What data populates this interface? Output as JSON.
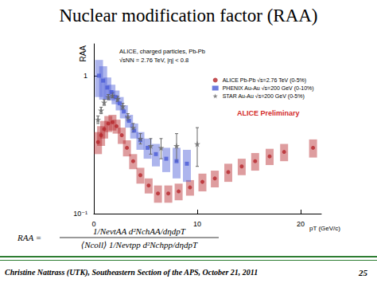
{
  "chart_data": {
    "type": "scatter",
    "title": "Nuclear modification factor (RAA)",
    "x_label": "pT (GeV/c)",
    "y_label": "RAA",
    "xlim": [
      0,
      22
    ],
    "xticks": [
      0,
      10,
      20
    ],
    "ylim": [
      0.1,
      1.7
    ],
    "yticks": [
      {
        "value": 0.1,
        "label": "10⁻¹"
      },
      1
    ],
    "log": "y",
    "grid": false,
    "legend": "upper right",
    "annotations": [
      {
        "text": "ALICE, charged particles, Pb-Pb"
      },
      {
        "text": "√sNN = 2.76 TeV, |η| < 0.8"
      },
      {
        "text": "ALICE Preliminary",
        "color": "#d42a2a"
      }
    ],
    "series": [
      {
        "name": "ALICE Pb-Pb √s=2.76 TeV (0-5%)",
        "color": "#b5262b",
        "marker": "circle",
        "x": [
          0.4,
          0.7,
          1.0,
          1.4,
          1.8,
          2.2,
          2.7,
          3.2,
          3.8,
          4.5,
          5.3,
          6.2,
          7.2,
          8.2,
          9.3,
          10.5,
          11.7,
          13.0,
          14.3,
          15.6,
          17.0,
          18.4,
          21.2
        ],
        "values": [
          0.33,
          0.37,
          0.41,
          0.45,
          0.46,
          0.43,
          0.37,
          0.3,
          0.24,
          0.19,
          0.16,
          0.14,
          0.14,
          0.145,
          0.155,
          0.17,
          0.18,
          0.2,
          0.22,
          0.24,
          0.26,
          0.28,
          0.3
        ],
        "systematic_errors": [
          0.06,
          0.06,
          0.06,
          0.06,
          0.06,
          0.05,
          0.05,
          0.04,
          0.03,
          0.025,
          0.02,
          0.02,
          0.02,
          0.02,
          0.02,
          0.025,
          0.025,
          0.03,
          0.03,
          0.035,
          0.035,
          0.04,
          0.045
        ]
      },
      {
        "name": "PHENIX Au-Au √s=200 GeV (0-10%)",
        "color": "#4a5bd6",
        "marker": "square",
        "x": [
          0.5,
          0.9,
          1.3,
          1.7,
          2.1,
          2.5,
          2.9,
          3.4,
          3.9,
          4.5,
          5.2,
          6.0,
          7.0,
          8.0,
          9.0
        ],
        "values": [
          1.0,
          0.92,
          0.82,
          0.76,
          0.7,
          0.63,
          0.55,
          0.47,
          0.4,
          0.34,
          0.3,
          0.27,
          0.25,
          0.24,
          0.23
        ],
        "systematic_errors": [
          0.3,
          0.25,
          0.15,
          0.1,
          0.08,
          0.07,
          0.06,
          0.05,
          0.05,
          0.05,
          0.05,
          0.05,
          0.05,
          0.06,
          0.06
        ]
      },
      {
        "name": "STAR Au-Au √s=200 GeV (0-5%)",
        "color": "#666666",
        "marker": "star",
        "x": [
          0.4,
          0.7,
          1.0,
          1.4,
          1.8,
          2.3,
          2.8,
          3.3,
          3.8,
          4.5,
          5.5,
          6.5,
          8.0,
          10.0
        ],
        "values": [
          0.48,
          0.56,
          0.64,
          0.7,
          0.72,
          0.68,
          0.6,
          0.5,
          0.42,
          0.35,
          0.31,
          0.3,
          0.31,
          0.32
        ],
        "errors": [
          0.03,
          0.03,
          0.03,
          0.03,
          0.03,
          0.03,
          0.03,
          0.03,
          0.03,
          0.03,
          0.04,
          0.05,
          0.07,
          0.1
        ]
      }
    ]
  },
  "formula": {
    "lhs": "RAA =",
    "numerator": "1/NevtAA d²NchAA/dηdpT",
    "denominator": "⟨Ncoll⟩ 1/Nevtpp d²Nchpp/dηdpT"
  },
  "footer": {
    "text": "Christine Nattrass (UTK), Southeastern Section of the APS, October 21, 2011",
    "page": "25"
  }
}
